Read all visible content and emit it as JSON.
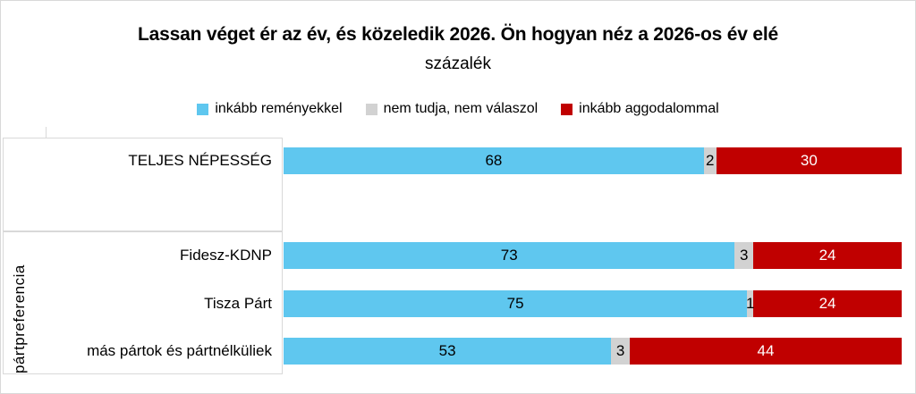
{
  "window": {
    "background": "#FFFFFF",
    "border_color": "#D9D9D9"
  },
  "title": "Lassan véget ér az év, és közeledik 2026. Ön hogyan néz a 2026-os év elé",
  "subtitle": "százalék",
  "legend": {
    "position": "top",
    "items": [
      {
        "label": "inkább reményekkel",
        "color": "#5FC7EF"
      },
      {
        "label": "nem tudja, nem válaszol",
        "color": "#D2D2D2"
      },
      {
        "label": "inkább aggodalommal",
        "color": "#C00000"
      }
    ]
  },
  "chart_data": {
    "type": "bar",
    "orientation": "horizontal",
    "stacked": true,
    "value_unit": "percent",
    "xlim": [
      0,
      100
    ],
    "grid": false,
    "legend_position": "top",
    "title": "Lassan véget ér az év, és közeledik 2026. Ön hogyan néz a 2026-os év elé",
    "subtitle": "százalék",
    "series": [
      "inkább reményekkel",
      "nem tudja, nem válaszol",
      "inkább aggodalommal"
    ],
    "series_colors": [
      "#5FC7EF",
      "#D2D2D2",
      "#C00000"
    ],
    "series_label_colors": [
      "#000000",
      "#000000",
      "#FFFFFF"
    ],
    "groups": [
      {
        "group_label": "",
        "categories": [
          "TELJES NÉPESSÉG"
        ],
        "rows": [
          [
            68,
            2,
            30
          ]
        ]
      },
      {
        "group_label": "pártpreferencia",
        "categories": [
          "Fidesz-KDNP",
          "Tisza Párt",
          "más pártok és pártnélküliek"
        ],
        "rows": [
          [
            73,
            3,
            24
          ],
          [
            75,
            1,
            24
          ],
          [
            53,
            3,
            44
          ]
        ]
      }
    ]
  }
}
